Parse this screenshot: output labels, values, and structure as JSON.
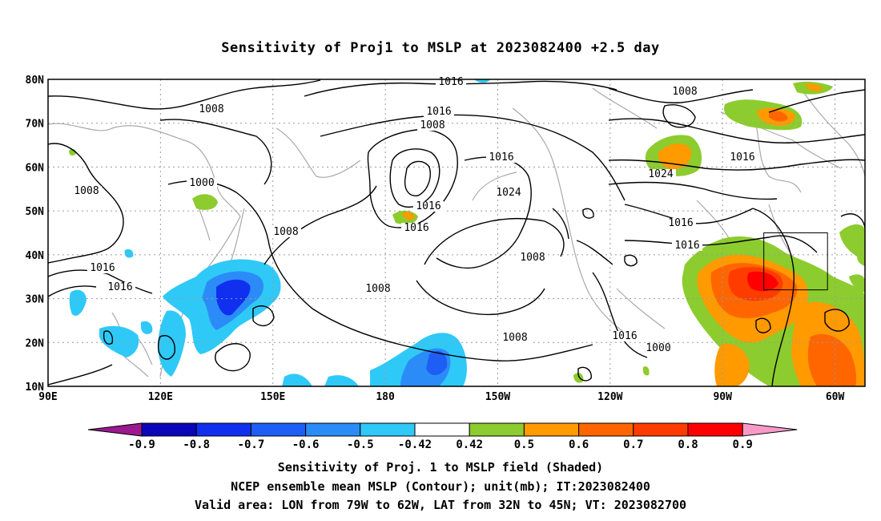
{
  "title": "Sensitivity of Proj1 to MSLP at 2023082400 +2.5 day",
  "map": {
    "lon_labels": [
      "90E",
      "120E",
      "150E",
      "180",
      "150W",
      "120W",
      "90W",
      "60W"
    ],
    "lat_labels": [
      "10N",
      "20N",
      "30N",
      "40N",
      "50N",
      "60N",
      "70N",
      "80N"
    ],
    "lon_range_deg_east": [
      90,
      308
    ],
    "lat_range": [
      10,
      80
    ],
    "grid": "dotted",
    "contour_labels": [
      "1016",
      "1008",
      "1016",
      "1008",
      "1000",
      "1008",
      "1016",
      "1024",
      "1016",
      "1016",
      "1008",
      "1008",
      "1008",
      "1016",
      "1016",
      "1008",
      "1016",
      "1000",
      "1008",
      "1016",
      "1024",
      "1016",
      "1016"
    ],
    "valid_box": {
      "lon_west": -79,
      "lon_east": -62,
      "lat_south": 32,
      "lat_north": 45
    }
  },
  "colorbar": {
    "labels": [
      "-0.9",
      "-0.8",
      "-0.7",
      "-0.6",
      "-0.5",
      "-0.42",
      "0.42",
      "0.5",
      "0.6",
      "0.7",
      "0.8",
      "0.9"
    ],
    "colors": [
      "#9b1a8f",
      "#0a05b8",
      "#1030f0",
      "#1e5ef5",
      "#2b8cf7",
      "#2fc9f7",
      "#ffffff",
      "#8ccc2e",
      "#ff9a00",
      "#ff6600",
      "#ff3c00",
      "#ff0000",
      "#f79ac8"
    ]
  },
  "captions": [
    "Sensitivity of Proj. 1 to MSLP field (Shaded)",
    "NCEP ensemble mean MSLP (Contour); unit(mb); IT:2023082400",
    "Valid area: LON from 79W to 62W, LAT from 32N to 45N; VT: 2023082700"
  ]
}
